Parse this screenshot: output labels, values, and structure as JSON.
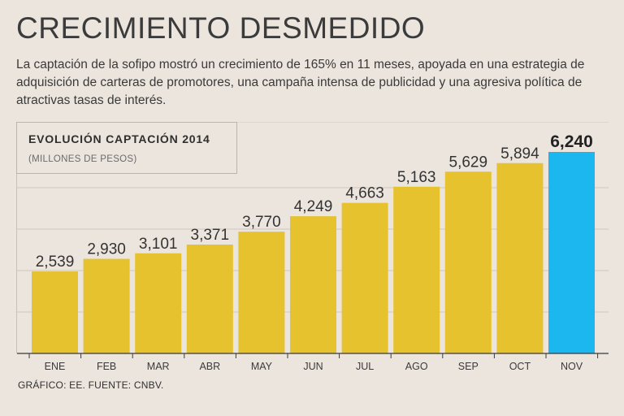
{
  "header": {
    "title": "CRECIMIENTO DESMEDIDO",
    "subtitle": "La captación de la sofipo mostró un crecimiento de 165% en 11 meses, apoyada en una estrategia de adquisición de carteras de promotores, una campaña intensa de publicidad y una agresiva política de atractivas tasas de interés."
  },
  "legend": {
    "title": "EVOLUCIÓN CAPTACIÓN 2014",
    "subtitle": "(MILLONES DE PESOS)"
  },
  "footer": {
    "source": "GRÁFICO: EE. FUENTE: CNBV."
  },
  "colors": {
    "bar": "#e6c22f",
    "highlight": "#1cb7ef",
    "grid": "#cfc7be",
    "axis": "#3a3a3a"
  },
  "chart_data": {
    "type": "bar",
    "title": "EVOLUCIÓN CAPTACIÓN 2014",
    "subtitle": "(MILLONES DE PESOS)",
    "categories": [
      "ENE",
      "FEB",
      "MAR",
      "ABR",
      "MAY",
      "JUN",
      "JUL",
      "AGO",
      "SEP",
      "OCT",
      "NOV"
    ],
    "values": [
      2539,
      2930,
      3101,
      3371,
      3770,
      4249,
      4663,
      5163,
      5629,
      5894,
      6240
    ],
    "value_labels": [
      "2,539",
      "2,930",
      "3,101",
      "3,371",
      "3,770",
      "4,249",
      "4,663",
      "5,163",
      "5,629",
      "5,894",
      "6,240"
    ],
    "highlight_category": "NOV",
    "ylim": [
      0,
      6240
    ],
    "grid": true,
    "xlabel": "",
    "ylabel": ""
  }
}
